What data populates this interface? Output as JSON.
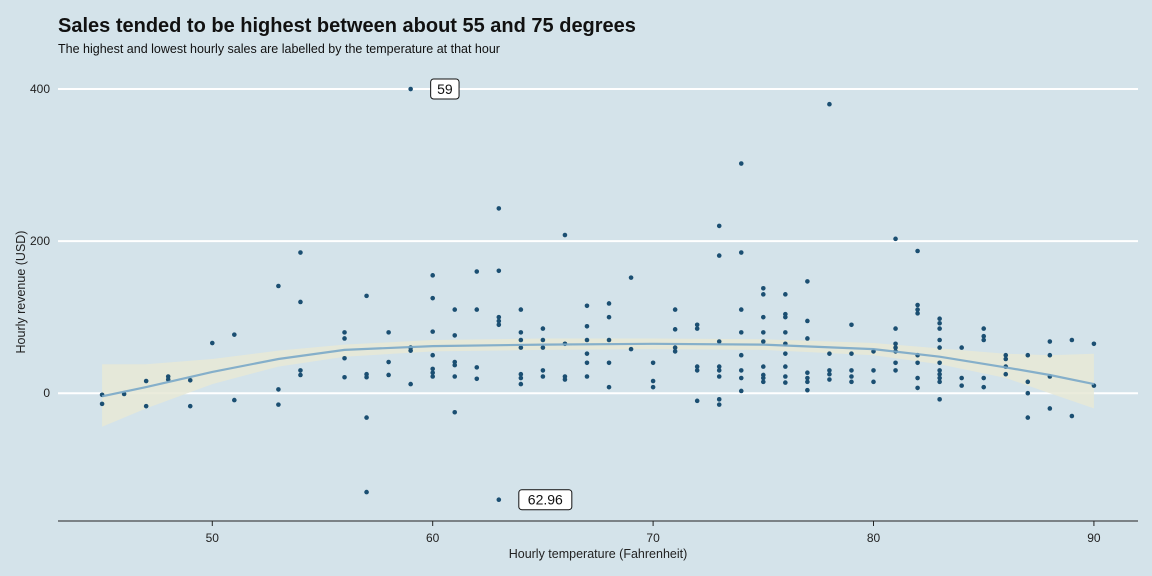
{
  "chart_data": {
    "type": "scatter",
    "title": "Sales tended to be highest between about 55 and 75 degrees",
    "subtitle": "The highest and lowest hourly sales are labelled by the temperature at that hour",
    "xlabel": "Hourly temperature (Fahrenheit)",
    "ylabel": "Hourly revenue (USD)",
    "xlim": [
      43,
      92
    ],
    "ylim": [
      -168,
      425
    ],
    "x_ticks": [
      50,
      60,
      70,
      80,
      90
    ],
    "y_ticks": [
      0,
      200,
      400
    ],
    "grid": "horizontal",
    "colors": {
      "background": "#d4e3ea",
      "point": "#1b4f72",
      "smooth_line": "#7aa9c8",
      "confidence_band": "#e8e9d6",
      "grid": "#ffffff"
    },
    "points": [
      [
        45,
        -14
      ],
      [
        45,
        -2
      ],
      [
        46,
        -1
      ],
      [
        47,
        16
      ],
      [
        47,
        -17
      ],
      [
        48,
        22
      ],
      [
        48,
        18
      ],
      [
        49,
        17
      ],
      [
        49,
        -17
      ],
      [
        50,
        66
      ],
      [
        51,
        77
      ],
      [
        51,
        -9
      ],
      [
        53,
        141
      ],
      [
        53,
        5
      ],
      [
        53,
        -15
      ],
      [
        54,
        185
      ],
      [
        54,
        120
      ],
      [
        54,
        30
      ],
      [
        54,
        24
      ],
      [
        56,
        80
      ],
      [
        56,
        72
      ],
      [
        56,
        46
      ],
      [
        56,
        21
      ],
      [
        57,
        128
      ],
      [
        57,
        25
      ],
      [
        57,
        21
      ],
      [
        57,
        -32
      ],
      [
        57,
        -130
      ],
      [
        58,
        80
      ],
      [
        58,
        41
      ],
      [
        58,
        24
      ],
      [
        59,
        400
      ],
      [
        59,
        60
      ],
      [
        59,
        56
      ],
      [
        59,
        12
      ],
      [
        60,
        155
      ],
      [
        60,
        125
      ],
      [
        60,
        81
      ],
      [
        60,
        50
      ],
      [
        60,
        32
      ],
      [
        60,
        27
      ],
      [
        60,
        22
      ],
      [
        61,
        110
      ],
      [
        61,
        76
      ],
      [
        61,
        41
      ],
      [
        61,
        37
      ],
      [
        61,
        22
      ],
      [
        61,
        -25
      ],
      [
        62,
        160
      ],
      [
        62,
        110
      ],
      [
        62,
        34
      ],
      [
        62,
        19
      ],
      [
        63,
        243
      ],
      [
        63,
        161
      ],
      [
        63,
        100
      ],
      [
        63,
        95
      ],
      [
        63,
        90
      ],
      [
        63,
        -140
      ],
      [
        64,
        110
      ],
      [
        64,
        80
      ],
      [
        64,
        70
      ],
      [
        64,
        60
      ],
      [
        64,
        25
      ],
      [
        64,
        20
      ],
      [
        64,
        12
      ],
      [
        65,
        85
      ],
      [
        65,
        70
      ],
      [
        65,
        60
      ],
      [
        65,
        30
      ],
      [
        65,
        22
      ],
      [
        66,
        208
      ],
      [
        66,
        65
      ],
      [
        66,
        22
      ],
      [
        66,
        18
      ],
      [
        67,
        115
      ],
      [
        67,
        88
      ],
      [
        67,
        70
      ],
      [
        67,
        52
      ],
      [
        67,
        40
      ],
      [
        67,
        22
      ],
      [
        68,
        118
      ],
      [
        68,
        100
      ],
      [
        68,
        70
      ],
      [
        68,
        40
      ],
      [
        68,
        8
      ],
      [
        69,
        152
      ],
      [
        69,
        58
      ],
      [
        70,
        40
      ],
      [
        70,
        16
      ],
      [
        70,
        8
      ],
      [
        71,
        110
      ],
      [
        71,
        84
      ],
      [
        71,
        60
      ],
      [
        71,
        55
      ],
      [
        72,
        90
      ],
      [
        72,
        85
      ],
      [
        72,
        35
      ],
      [
        72,
        30
      ],
      [
        72,
        -10
      ],
      [
        73,
        220
      ],
      [
        73,
        181
      ],
      [
        73,
        68
      ],
      [
        73,
        35
      ],
      [
        73,
        30
      ],
      [
        73,
        22
      ],
      [
        73,
        -8
      ],
      [
        73,
        -15
      ],
      [
        74,
        302
      ],
      [
        74,
        185
      ],
      [
        74,
        110
      ],
      [
        74,
        80
      ],
      [
        74,
        50
      ],
      [
        74,
        30
      ],
      [
        74,
        20
      ],
      [
        74,
        3
      ],
      [
        75,
        138
      ],
      [
        75,
        130
      ],
      [
        75,
        100
      ],
      [
        75,
        80
      ],
      [
        75,
        68
      ],
      [
        75,
        35
      ],
      [
        75,
        24
      ],
      [
        75,
        20
      ],
      [
        75,
        15
      ],
      [
        76,
        130
      ],
      [
        76,
        104
      ],
      [
        76,
        100
      ],
      [
        76,
        80
      ],
      [
        76,
        65
      ],
      [
        76,
        52
      ],
      [
        76,
        35
      ],
      [
        76,
        22
      ],
      [
        76,
        14
      ],
      [
        77,
        147
      ],
      [
        77,
        95
      ],
      [
        77,
        72
      ],
      [
        77,
        27
      ],
      [
        77,
        20
      ],
      [
        77,
        15
      ],
      [
        77,
        4
      ],
      [
        78,
        380
      ],
      [
        78,
        52
      ],
      [
        78,
        30
      ],
      [
        78,
        25
      ],
      [
        78,
        18
      ],
      [
        79,
        90
      ],
      [
        79,
        52
      ],
      [
        79,
        30
      ],
      [
        79,
        22
      ],
      [
        79,
        15
      ],
      [
        80,
        55
      ],
      [
        80,
        30
      ],
      [
        80,
        15
      ],
      [
        81,
        203
      ],
      [
        81,
        85
      ],
      [
        81,
        65
      ],
      [
        81,
        60
      ],
      [
        81,
        55
      ],
      [
        81,
        40
      ],
      [
        81,
        30
      ],
      [
        82,
        187
      ],
      [
        82,
        116
      ],
      [
        82,
        110
      ],
      [
        82,
        105
      ],
      [
        82,
        50
      ],
      [
        82,
        40
      ],
      [
        82,
        20
      ],
      [
        82,
        7
      ],
      [
        83,
        98
      ],
      [
        83,
        92
      ],
      [
        83,
        85
      ],
      [
        83,
        70
      ],
      [
        83,
        60
      ],
      [
        83,
        40
      ],
      [
        83,
        30
      ],
      [
        83,
        25
      ],
      [
        83,
        20
      ],
      [
        83,
        15
      ],
      [
        83,
        -8
      ],
      [
        84,
        60
      ],
      [
        84,
        20
      ],
      [
        84,
        10
      ],
      [
        85,
        85
      ],
      [
        85,
        75
      ],
      [
        85,
        70
      ],
      [
        85,
        20
      ],
      [
        85,
        8
      ],
      [
        86,
        50
      ],
      [
        86,
        45
      ],
      [
        86,
        35
      ],
      [
        86,
        25
      ],
      [
        87,
        50
      ],
      [
        87,
        15
      ],
      [
        87,
        0
      ],
      [
        87,
        -32
      ],
      [
        88,
        68
      ],
      [
        88,
        50
      ],
      [
        88,
        22
      ],
      [
        88,
        -20
      ],
      [
        89,
        70
      ],
      [
        89,
        -30
      ],
      [
        90,
        65
      ],
      [
        90,
        10
      ]
    ],
    "smooth": {
      "x": [
        45,
        47,
        50,
        53,
        56,
        60,
        65,
        70,
        75,
        80,
        83,
        86,
        88,
        90
      ],
      "y": [
        -4,
        8,
        28,
        45,
        57,
        62,
        64,
        65,
        64,
        58,
        48,
        34,
        24,
        12
      ],
      "ci_low": [
        -44,
        -20,
        12,
        35,
        48,
        55,
        57,
        58,
        57,
        50,
        38,
        20,
        0,
        -20
      ],
      "ci_high": [
        38,
        38,
        45,
        56,
        64,
        70,
        72,
        72,
        71,
        66,
        59,
        52,
        50,
        52
      ]
    },
    "annotations": [
      {
        "label": "59",
        "x": 59,
        "y": 400
      },
      {
        "label": "62.96",
        "x": 63,
        "y": -140
      }
    ]
  }
}
